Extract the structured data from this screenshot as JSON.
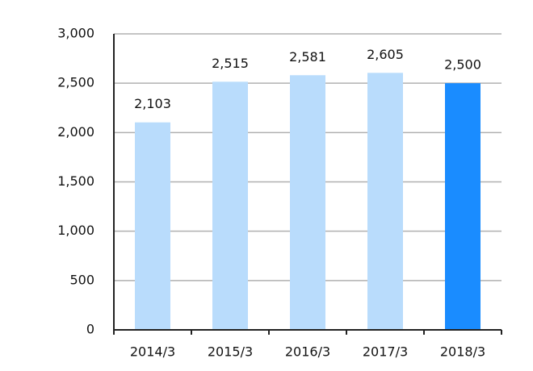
{
  "chart_data": {
    "type": "bar",
    "categories": [
      "2014/3",
      "2015/3",
      "2016/3",
      "2017/3",
      "2018/3"
    ],
    "values": [
      2103,
      2515,
      2581,
      2605,
      2500
    ],
    "value_labels": [
      "2,103",
      "2,515",
      "2,581",
      "2,605",
      "2,500"
    ],
    "colors": [
      "#b9dcfc",
      "#b9dcfc",
      "#b9dcfc",
      "#b9dcfc",
      "#1a8cff"
    ],
    "ylim": [
      0,
      3000
    ],
    "yticks": [
      0,
      500,
      {
        "value": 1000,
        "label": "1,000"
      },
      {
        "value": 1500,
        "label": "1,500"
      },
      {
        "value": 2000,
        "label": "2,000"
      },
      {
        "value": 2500,
        "label": "2,500"
      },
      {
        "value": 3000,
        "label": "3,000"
      }
    ],
    "grid": true
  }
}
